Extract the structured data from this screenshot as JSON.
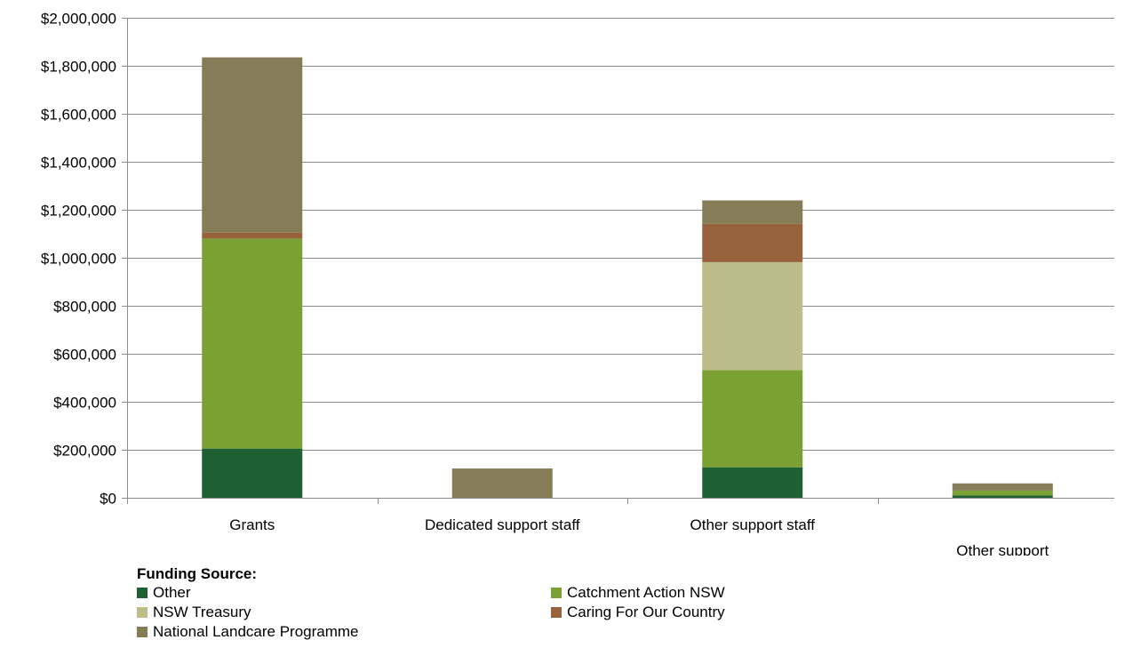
{
  "chart_data": {
    "type": "bar",
    "stacked": true,
    "categories": [
      "Grants",
      "Dedicated support staff",
      "Other support staff",
      "Other support"
    ],
    "series": [
      {
        "name": "Other",
        "color": "#1e6032",
        "values": [
          205000,
          0,
          127000,
          10000
        ]
      },
      {
        "name": "Catchment Action NSW",
        "color": "#7ba135",
        "values": [
          875000,
          0,
          405000,
          20000
        ]
      },
      {
        "name": "NSW Treasury",
        "color": "#bcbc8a",
        "values": [
          0,
          0,
          450000,
          0
        ]
      },
      {
        "name": "Caring For Our Country",
        "color": "#97623c",
        "values": [
          25000,
          0,
          160000,
          0
        ]
      },
      {
        "name": "National Landcare Programme",
        "color": "#847d58",
        "values": [
          730000,
          122000,
          97000,
          30000
        ]
      }
    ],
    "ylim": [
      0,
      2000000
    ],
    "yticks": [
      0,
      200000,
      400000,
      600000,
      800000,
      1000000,
      1200000,
      1400000,
      1600000,
      1800000,
      2000000
    ],
    "ytick_labels": [
      "$0",
      "$200,000",
      "$400,000",
      "$600,000",
      "$800,000",
      "$1,000,000",
      "$1,200,000",
      "$1,400,000",
      "$1,600,000",
      "$1,800,000",
      "$2,000,000"
    ],
    "grid": true,
    "legend_title": "Funding Source:",
    "legend_position": "bottom-left"
  }
}
